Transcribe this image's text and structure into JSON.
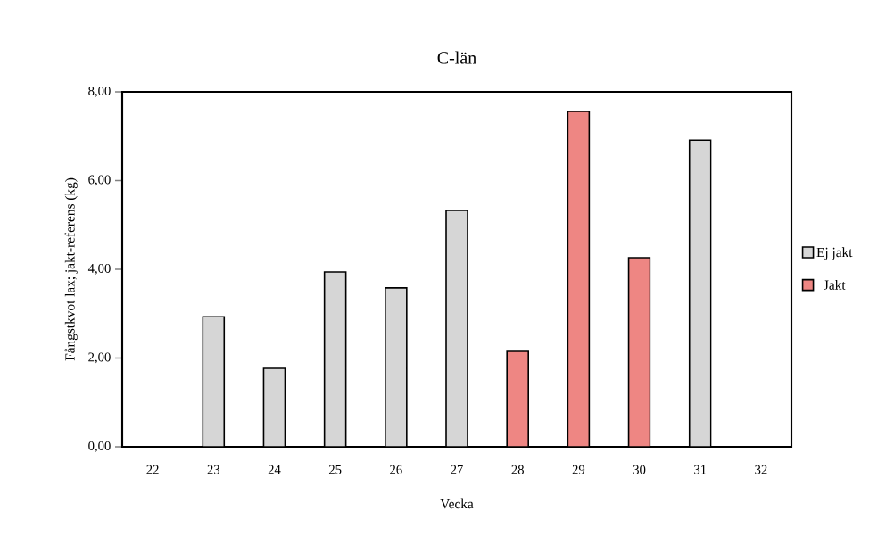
{
  "chart_data": {
    "type": "bar",
    "title": "C-län",
    "xlabel": "Vecka",
    "ylabel": "Fångstkvot lax; jakt-referens (kg)",
    "categories": [
      "22",
      "23",
      "24",
      "25",
      "26",
      "27",
      "28",
      "29",
      "30",
      "31",
      "32"
    ],
    "series": [
      {
        "name": "Ej jakt",
        "color": "#d6d6d6",
        "values": [
          null,
          2.93,
          1.77,
          3.94,
          3.58,
          5.33,
          null,
          null,
          null,
          6.91,
          null
        ]
      },
      {
        "name": "Jakt",
        "color": "#ee8683",
        "values": [
          null,
          null,
          null,
          null,
          null,
          null,
          2.15,
          7.56,
          4.26,
          null,
          null
        ]
      }
    ],
    "ylim": [
      0,
      8
    ],
    "yticks": [
      {
        "value": 0,
        "label": "0,00"
      },
      {
        "value": 2,
        "label": "2,00"
      },
      {
        "value": 4,
        "label": "4,00"
      },
      {
        "value": 6,
        "label": "6,00"
      },
      {
        "value": 8,
        "label": "8,00"
      }
    ],
    "legend": "right",
    "grid": false
  }
}
